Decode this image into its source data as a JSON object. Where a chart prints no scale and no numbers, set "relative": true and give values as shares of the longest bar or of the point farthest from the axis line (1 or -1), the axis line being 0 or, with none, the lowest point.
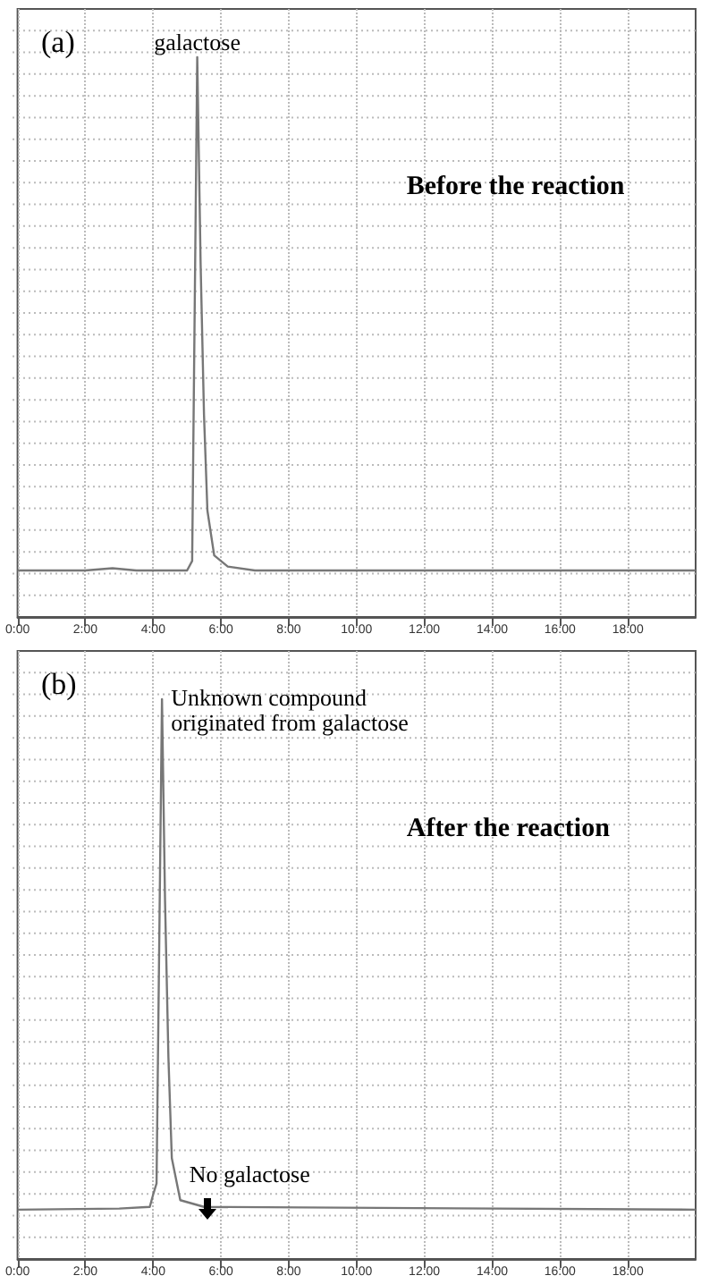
{
  "chart_data": [
    {
      "type": "line",
      "title": "(a)",
      "relative": true,
      "grid": true,
      "marker": "none",
      "line_style": "solid",
      "xlim": [
        0,
        20
      ],
      "xticks": [
        {
          "value": 0,
          "label": "0:00"
        },
        {
          "value": 2,
          "label": "2:00"
        },
        {
          "value": 4,
          "label": "4:00"
        },
        {
          "value": 6,
          "label": "6:00"
        },
        {
          "value": 8,
          "label": "8:00"
        },
        {
          "value": 10,
          "label": "10:00"
        },
        {
          "value": 12,
          "label": "12:00"
        },
        {
          "value": 14,
          "label": "14:00"
        },
        {
          "value": 16,
          "label": "16:00"
        },
        {
          "value": 18,
          "label": "18:00"
        }
      ],
      "series": [
        {
          "color": "#777777",
          "x": [
            0,
            2.0,
            2.8,
            3.5,
            5.0,
            5.15,
            5.3,
            5.4,
            5.5,
            5.6,
            5.8,
            6.2,
            7.0,
            20
          ],
          "values": [
            0.083,
            0.083,
            0.087,
            0.083,
            0.083,
            0.1,
            1,
            0.63,
            0.36,
            0.19,
            0.11,
            0.09,
            0.083,
            0.083
          ]
        }
      ],
      "annotations": [
        "galactose",
        "Before the reaction"
      ]
    },
    {
      "type": "line",
      "title": "(b)",
      "relative": true,
      "grid": true,
      "marker": "none",
      "line_style": "solid",
      "xlim": [
        0,
        20
      ],
      "xticks": [
        {
          "value": 0,
          "label": "0:00"
        },
        {
          "value": 2,
          "label": "2:00"
        },
        {
          "value": 4,
          "label": "4:00"
        },
        {
          "value": 6,
          "label": "6:00"
        },
        {
          "value": 8,
          "label": "8:00"
        },
        {
          "value": 10,
          "label": "10:00"
        },
        {
          "value": 12,
          "label": "12:00"
        },
        {
          "value": 14,
          "label": "14:00"
        },
        {
          "value": 16,
          "label": "16:00"
        },
        {
          "value": 18,
          "label": "18:00"
        }
      ],
      "series": [
        {
          "color": "#777777",
          "x": [
            0,
            3.0,
            3.9,
            4.0,
            4.1,
            4.26,
            4.35,
            4.45,
            4.55,
            4.8,
            5.5,
            20
          ],
          "values": [
            0.088,
            0.09,
            0.093,
            0.115,
            0.135,
            1,
            0.64,
            0.36,
            0.18,
            0.105,
            0.093,
            0.088
          ]
        }
      ],
      "annotations": [
        "Unknown compound originated from galactose",
        "After the reaction",
        "No galactose"
      ]
    }
  ]
}
